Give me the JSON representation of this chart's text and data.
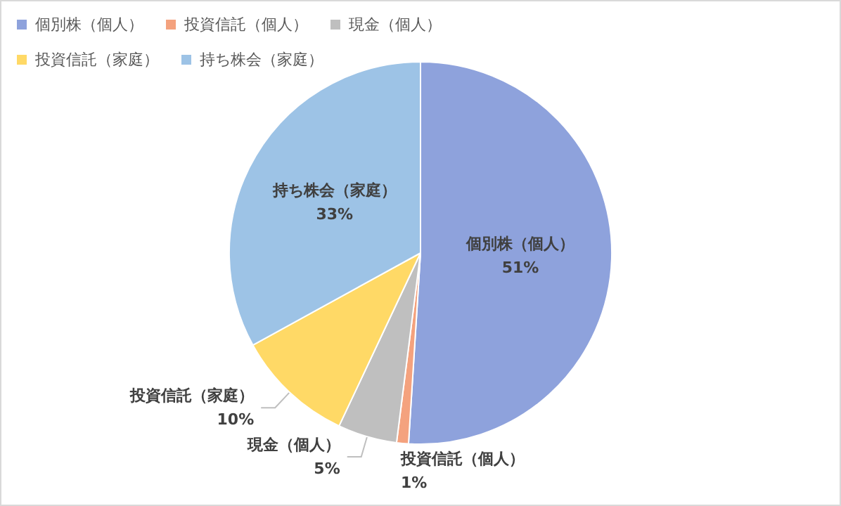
{
  "chart_data": {
    "type": "pie",
    "categories": [
      "個別株（個人）",
      "投資信託（個人）",
      "現金（個人）",
      "投資信託（家庭）",
      "持ち株会（家庭）"
    ],
    "values": [
      51,
      1,
      5,
      10,
      33
    ],
    "value_labels": [
      "51%",
      "1%",
      "5%",
      "10%",
      "33%"
    ],
    "colors": [
      "#8ea2dc",
      "#f4a27e",
      "#bfbfbf",
      "#ffd966",
      "#9dc3e6"
    ],
    "legend": "top left"
  }
}
